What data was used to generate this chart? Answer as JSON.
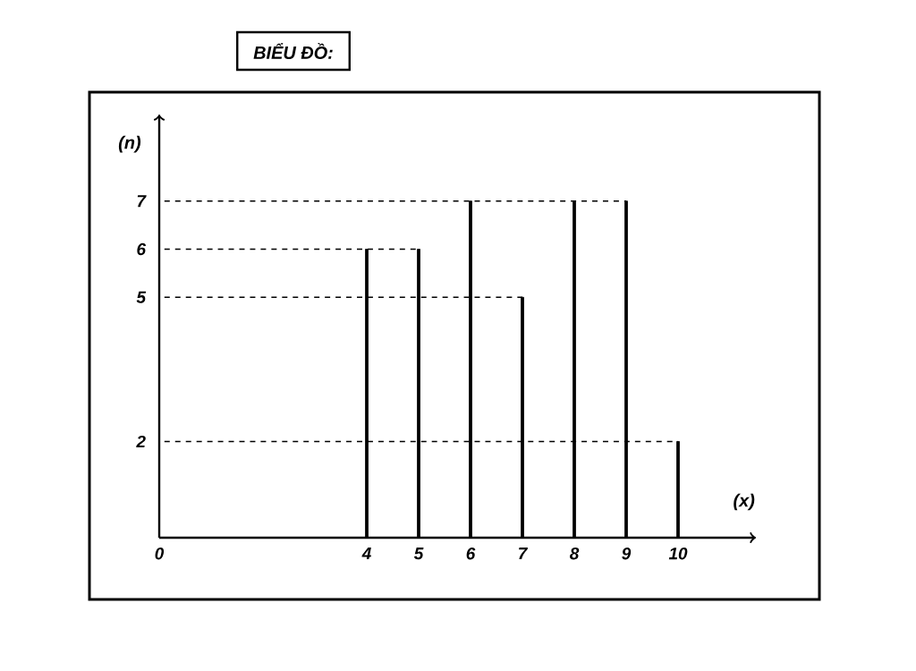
{
  "chart_data": {
    "type": "bar",
    "title": "BIỂU ĐỒ:",
    "xlabel": "(x)",
    "ylabel": "(n)",
    "x": [
      4,
      5,
      6,
      7,
      8,
      9,
      10
    ],
    "values": [
      6,
      6,
      7,
      5,
      7,
      7,
      2
    ],
    "color": "#000000",
    "xlim": [
      0,
      11.5
    ],
    "ylim": [
      0,
      8.8
    ],
    "xticks": [
      0,
      4,
      5,
      6,
      7,
      8,
      9,
      10
    ],
    "yticks": [
      2,
      5,
      6,
      7
    ],
    "ref_lines": [
      {
        "axis": "y",
        "value": 7,
        "line_style": "dashed"
      },
      {
        "axis": "y",
        "value": 6,
        "line_style": "dashed"
      },
      {
        "axis": "y",
        "value": 5,
        "line_style": "dashed"
      },
      {
        "axis": "y",
        "value": 2,
        "line_style": "dashed"
      }
    ]
  }
}
